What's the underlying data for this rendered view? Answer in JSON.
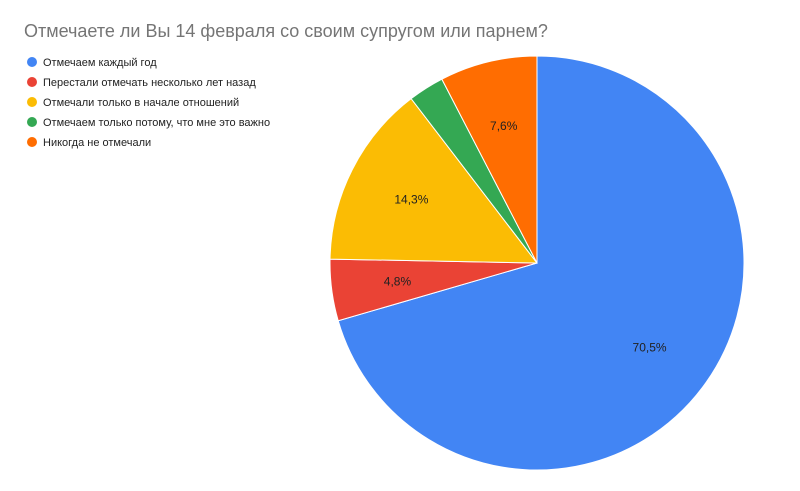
{
  "chart_data": {
    "type": "pie",
    "title": "Отмечаете ли Вы 14 февраля со своим супругом или парнем?",
    "legend_position": "top-left",
    "start_angle_deg": 0,
    "direction": "clockwise",
    "slices": [
      {
        "label": "Отмечаем каждый год",
        "value": 70.5,
        "value_label": "70,5%",
        "color": "#4285f4"
      },
      {
        "label": "Перестали отмечать несколько лет назад",
        "value": 4.8,
        "value_label": "4,8%",
        "color": "#ea4335"
      },
      {
        "label": "Отмечали только в начале отношений",
        "value": 14.3,
        "value_label": "14,3%",
        "color": "#fbbc04"
      },
      {
        "label": "Отмечаем только потому, что мне это важно",
        "value": 2.8,
        "value_label": "",
        "color": "#34a853"
      },
      {
        "label": "Никогда не отмечали",
        "value": 7.6,
        "value_label": "7,6%",
        "color": "#ff6d01"
      }
    ]
  }
}
